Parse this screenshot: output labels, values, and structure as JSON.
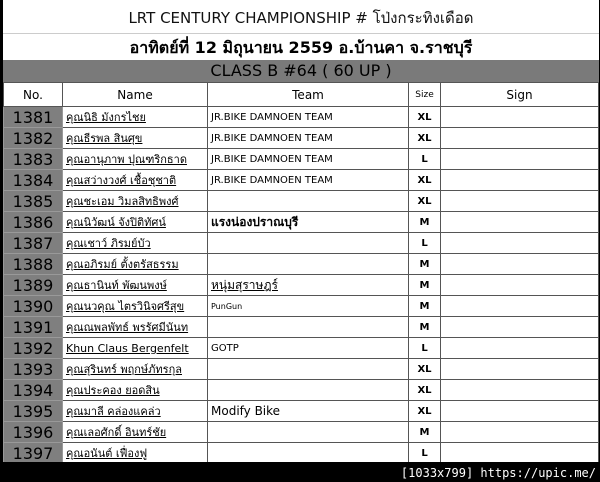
{
  "title": "LRT CENTURY CHAMPIONSHIP  # โป่งกระทิงเดือด",
  "date_line": "อาทิตย์ที่  12 มิถุนายน  2559  อ.บ้านคา  จ.ราชบุรี",
  "class_line": "CLASS  B  #64  ( 60 UP )",
  "headers": {
    "no": "No.",
    "name": "Name",
    "team": "Team",
    "size": "Size",
    "sign": "Sign"
  },
  "rows": [
    {
      "no": "1381",
      "name": "คุณนิธิ  มังกรไชย",
      "team": "JR.BIKE DAMNOEN TEAM",
      "size": "XL"
    },
    {
      "no": "1382",
      "name": "คุณธีรพล  สินศุข",
      "team": "JR.BIKE DAMNOEN TEAM",
      "size": "XL"
    },
    {
      "no": "1383",
      "name": "คุณอานุภาพ  ปุณฑริกธาด",
      "team": "JR.BIKE DAMNOEN TEAM",
      "size": "L"
    },
    {
      "no": "1384",
      "name": "คุณสว่างวงศ์  เชื้อชุชาติ",
      "team": "JR.BIKE DAMNOEN TEAM",
      "size": "XL"
    },
    {
      "no": "1385",
      "name": "คุณชะเอม  วิมลสิทธิพงศ์",
      "team": "",
      "size": "XL"
    },
    {
      "no": "1386",
      "name": "คุณนิวัฒน์  จังปิติทัศน์",
      "team": "แรงน่องปราณบุรี",
      "size": "M"
    },
    {
      "no": "1387",
      "name": "คุณเชาว์  ภิรมย์บัว",
      "team": "",
      "size": "L"
    },
    {
      "no": "1388",
      "name": "คุณอภิรมย์  ตั้งตรัสธรรม",
      "team": "",
      "size": "M"
    },
    {
      "no": "1389",
      "name": "คุณธานินท์  พัฒนพงษ์",
      "team": "หนุ่มสุราษฎร์",
      "size": "M"
    },
    {
      "no": "1390",
      "name": "คุณนวคุณ  ไตรวินิจศรีสุข",
      "team": "PunGun",
      "size": "M"
    },
    {
      "no": "1391",
      "name": "คุณณพลพัทธ์  พรรัศมีนันท",
      "team": "",
      "size": "M"
    },
    {
      "no": "1392",
      "name": "Khun Claus  Bergenfelt",
      "team": "GOTP",
      "size": "L"
    },
    {
      "no": "1393",
      "name": "คุณสุรินทร์  พฤกษ์ภัทรกุล",
      "team": "",
      "size": "XL"
    },
    {
      "no": "1394",
      "name": "คุณประคอง  ยอดสิน",
      "team": "",
      "size": "XL"
    },
    {
      "no": "1395",
      "name": "คุณมาลี  คล่องแคล่ว",
      "team": "Modify Bike",
      "size": "XL"
    },
    {
      "no": "1396",
      "name": "คุณเลอศักดิ์  อินทร์ชัย",
      "team": "",
      "size": "M"
    },
    {
      "no": "1397",
      "name": "คุณอนันต์  เฟื่องฟู",
      "team": "",
      "size": "L"
    }
  ],
  "footer": "[1033x799] https://upic.me/"
}
